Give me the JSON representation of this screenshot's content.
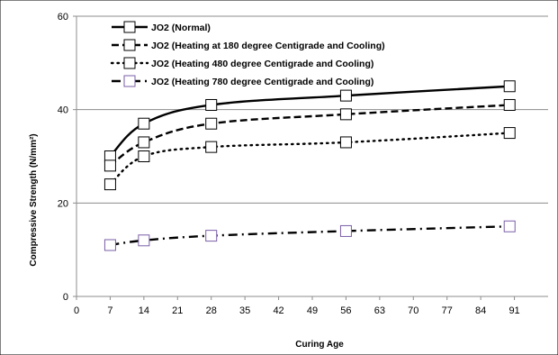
{
  "chart_data": {
    "type": "line",
    "xlabel": "Curing Age",
    "ylabel": "Compressive Strength (N/mm²)",
    "xlim": [
      0,
      98
    ],
    "ylim": [
      0,
      60
    ],
    "x_ticks": [
      0,
      7,
      14,
      21,
      28,
      35,
      42,
      49,
      56,
      63,
      70,
      77,
      84,
      91
    ],
    "y_ticks": [
      0,
      20,
      40,
      60
    ],
    "grid": "horizontal",
    "legend": "top-left",
    "series": [
      {
        "name": "JO2 (Normal)",
        "line_style": "solid",
        "marker_color": "#000000",
        "x": [
          7,
          14,
          28,
          56,
          90
        ],
        "values": [
          30,
          37,
          41,
          43,
          45
        ]
      },
      {
        "name": "JO2 (Heating at 180 degree Centigrade and Cooling)",
        "line_style": "dashed",
        "marker_color": "#000000",
        "x": [
          7,
          14,
          28,
          56,
          90
        ],
        "values": [
          28,
          33,
          37,
          39,
          41
        ]
      },
      {
        "name": "JO2 (Heating 480 degree Centigrade and Cooling)",
        "line_style": "dotted",
        "marker_color": "#000000",
        "x": [
          7,
          14,
          28,
          56,
          90
        ],
        "values": [
          24,
          30,
          32,
          33,
          35
        ]
      },
      {
        "name": "JO2 (Heating 780 degree Centigrade and Cooling)",
        "line_style": "dash-dot",
        "marker_color": "#7a5ea6",
        "x": [
          7,
          14,
          28,
          56,
          90
        ],
        "values": [
          11,
          12,
          13,
          14,
          15
        ]
      }
    ]
  }
}
